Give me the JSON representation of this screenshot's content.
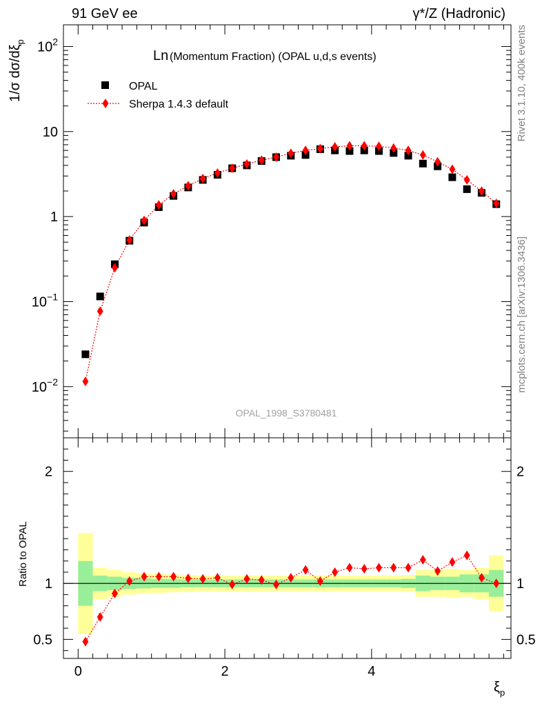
{
  "header": {
    "left": "91 GeV ee",
    "right": "γ*/Z (Hadronic)"
  },
  "side_labels": {
    "rivet": "Rivet 3.1.10,  400k events",
    "source": "mcplots.cern.ch [arXiv:1306.3436]"
  },
  "chart_data": {
    "type": "scatter",
    "title_prefix": "Ln",
    "title_rest": "(Momentum Fraction) (OPAL u,d,s events)",
    "watermark": "OPAL_1998_S3780481",
    "ylabel_main": "1/σ dσ/dξ",
    "ylabel_sub": "p",
    "ylabel_ratio": "Ratio to OPAL",
    "xlabel_main": "ξ",
    "xlabel_sub": "p",
    "xlim": [
      -0.2,
      5.9
    ],
    "ylim_main": [
      0.0025,
      180
    ],
    "ylim_ratio": [
      0.33,
      2.3
    ],
    "y_scale_main": "log",
    "x_ticks": [
      "0",
      "2",
      "4"
    ],
    "y_ticks_main": [
      {
        "base": "10",
        "exp": "2"
      },
      {
        "base": "10",
        "exp": ""
      },
      {
        "base": "1",
        "exp": ""
      },
      {
        "base": "10",
        "exp": "−1"
      },
      {
        "base": "10",
        "exp": "−2"
      }
    ],
    "y_ticks_ratio": [
      "0.5",
      "1",
      "2"
    ],
    "legend_position": "top-left",
    "legend": [
      {
        "name": "OPAL",
        "marker": "square",
        "color": "#000000"
      },
      {
        "name": "Sherpa 1.4.3 default",
        "marker": "diamond",
        "color": "#ff0000"
      }
    ],
    "colors": {
      "data": "#000000",
      "mc": "#ff0000",
      "band_inner": "#99ee99",
      "band_outer": "#ffff99"
    },
    "x": [
      0.1,
      0.3,
      0.5,
      0.7,
      0.9,
      1.1,
      1.3,
      1.5,
      1.7,
      1.9,
      2.1,
      2.3,
      2.5,
      2.7,
      2.9,
      3.1,
      3.3,
      3.5,
      3.7,
      3.9,
      4.1,
      4.3,
      4.5,
      4.7,
      4.9,
      5.1,
      5.3,
      5.5,
      5.7
    ],
    "series": [
      {
        "name": "OPAL",
        "values": [
          0.024,
          0.115,
          0.275,
          0.52,
          0.85,
          1.29,
          1.75,
          2.2,
          2.7,
          3.1,
          3.7,
          4.0,
          4.5,
          5.0,
          5.2,
          5.3,
          6.2,
          6.0,
          5.9,
          6.0,
          5.9,
          5.6,
          5.2,
          4.2,
          3.9,
          2.9,
          2.1,
          1.9,
          1.4
        ]
      },
      {
        "name": "Sherpa 1.4.3 default",
        "values": [
          0.0115,
          0.077,
          0.25,
          0.53,
          0.9,
          1.37,
          1.85,
          2.3,
          2.8,
          3.25,
          3.7,
          4.15,
          4.6,
          5.0,
          5.55,
          6.0,
          6.3,
          6.6,
          6.8,
          6.8,
          6.7,
          6.4,
          6.0,
          5.3,
          4.4,
          3.6,
          2.7,
          1.99,
          1.43
        ]
      }
    ],
    "ratio": [
      0.48,
      0.7,
      0.91,
      1.02,
      1.06,
      1.06,
      1.06,
      1.045,
      1.04,
      1.05,
      0.99,
      1.04,
      1.03,
      0.99,
      1.05,
      1.12,
      1.02,
      1.1,
      1.14,
      1.13,
      1.14,
      1.14,
      1.14,
      1.21,
      1.11,
      1.19,
      1.25,
      1.05,
      1.0
    ],
    "band_edges": [
      0,
      0.2,
      0.4,
      0.6,
      0.8,
      1.0,
      1.2,
      1.4,
      1.6,
      1.8,
      2.0,
      2.2,
      2.4,
      2.6,
      2.8,
      3.0,
      3.2,
      3.4,
      3.6,
      3.8,
      4.0,
      4.2,
      4.4,
      4.6,
      4.8,
      5.0,
      5.2,
      5.4,
      5.6,
      5.8
    ],
    "band_inner": [
      0.2,
      0.07,
      0.06,
      0.05,
      0.045,
      0.04,
      0.04,
      0.035,
      0.035,
      0.035,
      0.035,
      0.035,
      0.035,
      0.035,
      0.035,
      0.035,
      0.035,
      0.035,
      0.035,
      0.035,
      0.035,
      0.035,
      0.04,
      0.07,
      0.06,
      0.06,
      0.08,
      0.08,
      0.12
    ],
    "band_outer": [
      0.45,
      0.14,
      0.12,
      0.1,
      0.09,
      0.085,
      0.08,
      0.075,
      0.07,
      0.07,
      0.07,
      0.07,
      0.07,
      0.07,
      0.07,
      0.07,
      0.07,
      0.07,
      0.07,
      0.07,
      0.07,
      0.07,
      0.075,
      0.12,
      0.12,
      0.13,
      0.12,
      0.14,
      0.25
    ]
  }
}
